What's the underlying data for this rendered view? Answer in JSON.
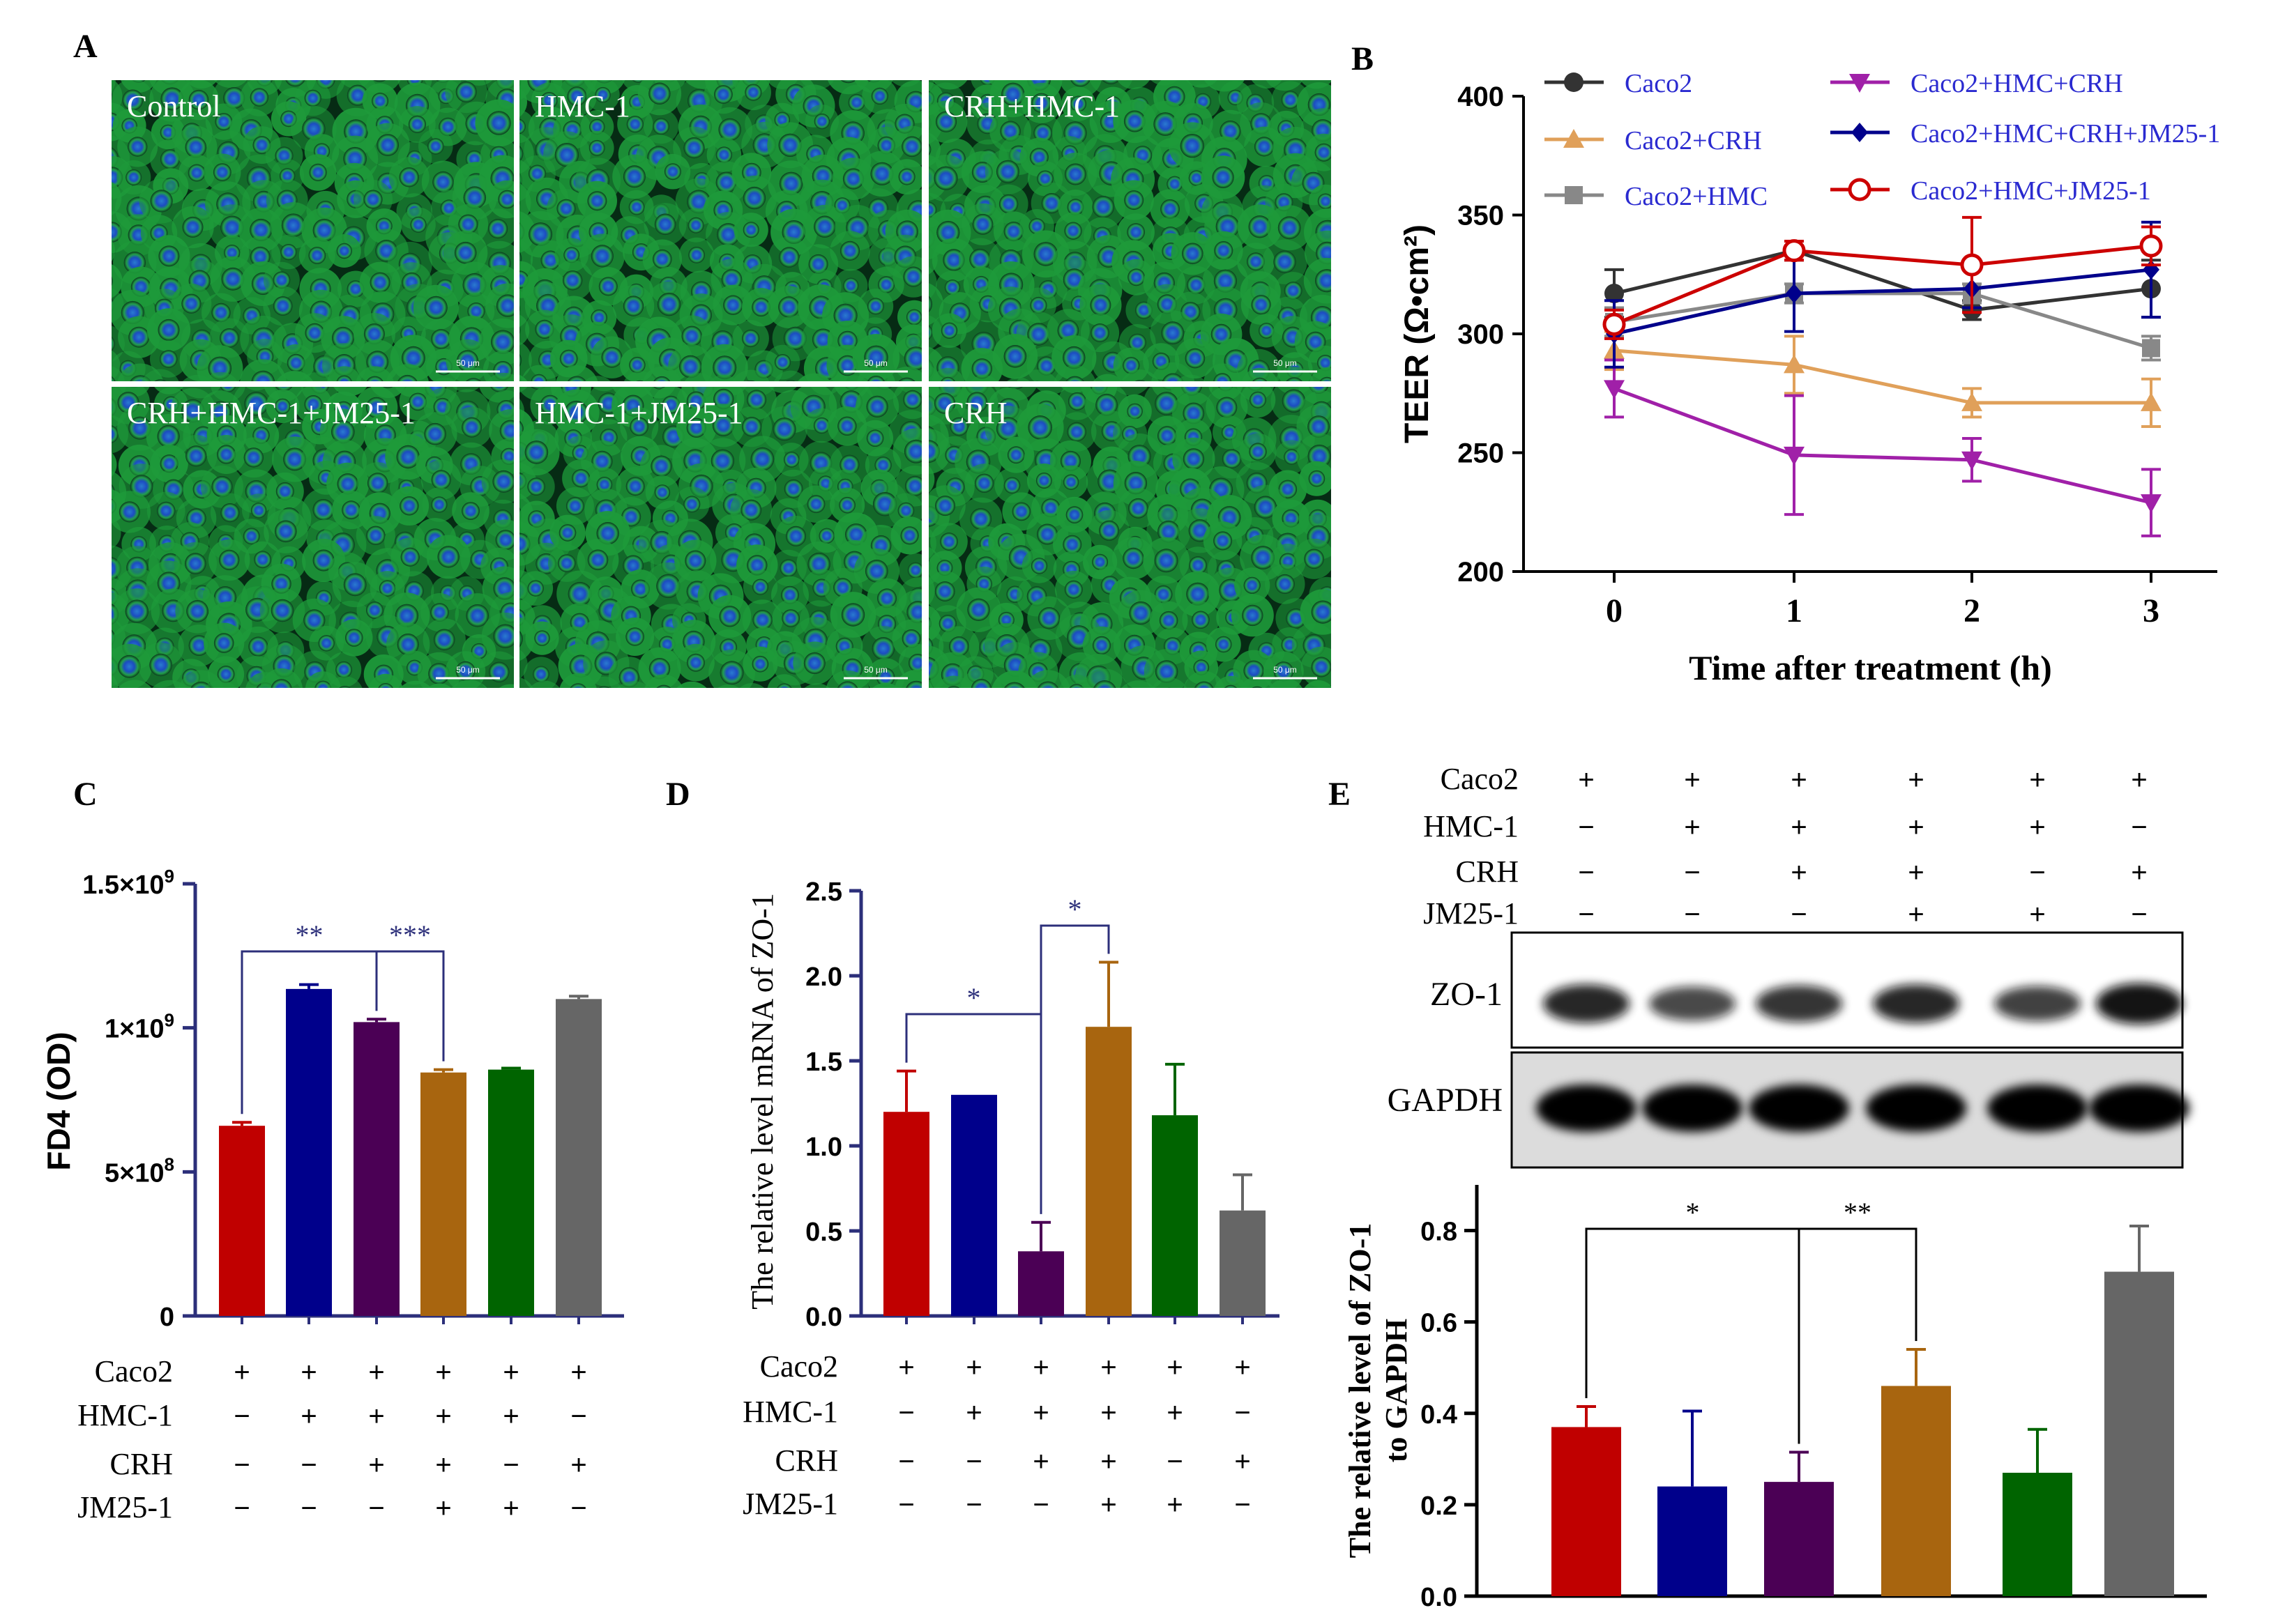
{
  "colors": {
    "red": "#c00000",
    "blue": "#00008b",
    "purple": "#4b0055",
    "orange": "#a8650f",
    "green": "#006400",
    "gray": "#666666",
    "axis": "#2c2f7a",
    "cell_green": "#2fb34a",
    "nucleus_blue": "#1a3bbf"
  },
  "panel_A": {
    "letter": "A",
    "images": [
      {
        "label": "Control",
        "scale": "50 μm"
      },
      {
        "label": "HMC-1",
        "scale": "50 μm"
      },
      {
        "label": "CRH+HMC-1",
        "scale": "50 μm"
      },
      {
        "label": "CRH+HMC-1+JM25-1",
        "scale": "50 μm"
      },
      {
        "label": "HMC-1+JM25-1",
        "scale": "50 μm"
      },
      {
        "label": "CRH",
        "scale": "50 μm"
      }
    ]
  },
  "treatment_rows": {
    "names": [
      "Caco2",
      "HMC-1",
      "CRH",
      "JM25-1"
    ],
    "signs": [
      [
        "+",
        "+",
        "+",
        "+",
        "+",
        "+"
      ],
      [
        "−",
        "+",
        "+",
        "+",
        "+",
        "−"
      ],
      [
        "−",
        "−",
        "+",
        "+",
        "−",
        "+"
      ],
      [
        "−",
        "−",
        "−",
        "+",
        "+",
        "−"
      ]
    ]
  },
  "chart_data": [
    {
      "panel": "B",
      "type": "line",
      "xlabel": "Time after treatment (h)",
      "ylabel": "TEER (Ω•cm²)",
      "x": [
        0,
        1,
        2,
        3
      ],
      "xticks": [
        "0",
        "1",
        "2",
        "3"
      ],
      "ylim": [
        200,
        400
      ],
      "yticks": [
        "200",
        "250",
        "300",
        "350",
        "400"
      ],
      "series": [
        {
          "name": "Caco2",
          "color": "#333333",
          "marker": "circle",
          "values": [
            317,
            335,
            310,
            319
          ],
          "errors": [
            10,
            4,
            4,
            12
          ]
        },
        {
          "name": "Caco2+CRH",
          "color": "#e0a05a",
          "marker": "triangle-up",
          "values": [
            293,
            287,
            271,
            271
          ],
          "errors": [
            8,
            12,
            6,
            10
          ]
        },
        {
          "name": "Caco2+HMC",
          "color": "#888888",
          "marker": "square",
          "values": [
            305,
            317,
            317,
            294
          ],
          "errors": [
            6,
            4,
            4,
            5
          ]
        },
        {
          "name": "Caco2+HMC+CRH",
          "color": "#a020a8",
          "marker": "triangle-down",
          "values": [
            277,
            249,
            247,
            229
          ],
          "errors": [
            12,
            25,
            9,
            14
          ]
        },
        {
          "name": "Caco2+HMC+CRH+JM25-1",
          "color": "#00008b",
          "marker": "diamond",
          "values": [
            300,
            317,
            319,
            327
          ],
          "errors": [
            14,
            16,
            8,
            20
          ]
        },
        {
          "name": "Caco2+HMC+JM25-1",
          "color": "#cc0000",
          "marker": "circle-open",
          "values": [
            304,
            335,
            329,
            337
          ],
          "errors": [
            6,
            4,
            20,
            8
          ]
        }
      ]
    },
    {
      "panel": "C",
      "type": "bar",
      "ylabel": "FD4 (OD)",
      "ylim": [
        0,
        1500000000
      ],
      "yticks": [
        {
          "base": "0",
          "exp": ""
        },
        {
          "base": "5×10",
          "exp": "8"
        },
        {
          "base": "1×10",
          "exp": "9"
        },
        {
          "base": "1.5×10",
          "exp": "9"
        }
      ],
      "values": [
        660000000,
        1135000000,
        1020000000,
        845000000,
        855000000,
        1100000000
      ],
      "errors": [
        12000000,
        15000000,
        10000000,
        10000000,
        5000000,
        10000000
      ],
      "significance": [
        {
          "label": "**",
          "from": 1,
          "to": 3
        },
        {
          "label": "***",
          "from": 3,
          "to": 4
        }
      ]
    },
    {
      "panel": "D",
      "type": "bar",
      "ylabel": "The relative level mRNA of ZO-1",
      "ylim": [
        0,
        2.5
      ],
      "yticks": [
        "0.0",
        "0.5",
        "1.0",
        "1.5",
        "2.0",
        "2.5"
      ],
      "values": [
        1.2,
        1.3,
        0.38,
        1.7,
        1.18,
        0.62
      ],
      "errors": [
        0.24,
        0,
        0.17,
        0.38,
        0.3,
        0.21
      ],
      "significance": [
        {
          "label": "*",
          "from": 1,
          "to": 3
        },
        {
          "label": "*",
          "from": 3,
          "to": 4
        }
      ]
    },
    {
      "panel": "E",
      "type": "bar",
      "ylabel": "The relative level  of ZO-1 to GAPDH",
      "ylim": [
        0,
        0.9
      ],
      "yticks": [
        "0.0",
        "0.2",
        "0.4",
        "0.6",
        "0.8"
      ],
      "values": [
        0.37,
        0.24,
        0.25,
        0.46,
        0.27,
        0.71
      ],
      "errors": [
        0.045,
        0.165,
        0.065,
        0.08,
        0.095,
        0.1
      ],
      "significance": [
        {
          "label": "*",
          "from": 1,
          "to": 3
        },
        {
          "label": "**",
          "from": 3,
          "to": 4
        }
      ]
    }
  ],
  "panel_B": {
    "letter": "B"
  },
  "panel_C": {
    "letter": "C"
  },
  "panel_D": {
    "letter": "D"
  },
  "panel_E": {
    "letter": "E",
    "blot_labels": [
      "ZO-1",
      "GAPDH"
    ],
    "zo1_band_intensity": [
      0.8,
      0.55,
      0.7,
      0.8,
      0.6,
      0.95
    ]
  }
}
